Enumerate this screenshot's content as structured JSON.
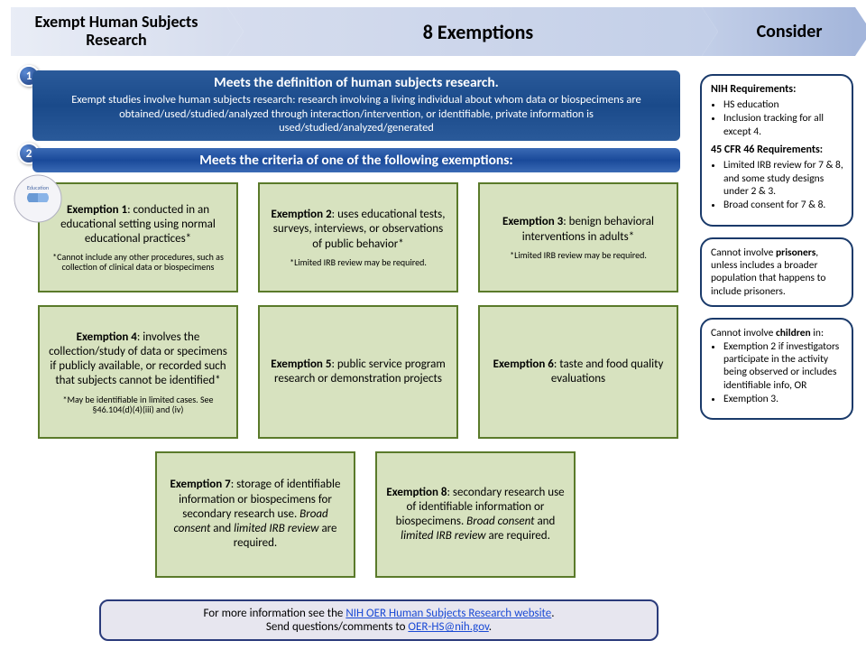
{
  "chevrons": {
    "c1": "Exempt Human Subjects Research",
    "c2": "8 Exemptions",
    "c3": "Consider"
  },
  "definition": {
    "title": "Meets the definition of human subjects research.",
    "desc": "Exempt studies involve human subjects research: research involving a living individual about whom data or biospecimens are obtained/used/studied/analyzed through interaction/intervention, or identifiable, private information is used/studied/analyzed/generated"
  },
  "criteria_title": "Meets the criteria of one of the following exemptions:",
  "exemptions": {
    "e1": {
      "title": "Exemption 1",
      "text": ": conducted in an educational setting using normal educational practices*",
      "note": "*Cannot include any other procedures, such as collection of clinical data or biospecimens"
    },
    "e2": {
      "title": "Exemption 2",
      "text": ": uses educational tests, surveys, interviews, or observations of public behavior*",
      "note": "*Limited IRB review may be required."
    },
    "e3": {
      "title": "Exemption 3",
      "text": ": benign behavioral interventions in adults*",
      "note": "*Limited IRB review may be required."
    },
    "e4": {
      "title": "Exemption 4",
      "text": ": involves the collection/study of data or specimens if publicly available, or recorded such that subjects cannot be identified*",
      "note": "*May be identifiable in limited cases. See §46.104(d)(4)(iii) and (iv)"
    },
    "e5": {
      "title": "Exemption 5",
      "text": ": public service program research or demonstration projects"
    },
    "e6": {
      "title": "Exemption 6",
      "text": ": taste and food quality evaluations"
    },
    "e7": {
      "title": "Exemption 7",
      "html": ": storage of identifiable information or biospecimens for secondary research use. <i>Broad consent</i> and <i>limited IRB review</i> are required."
    },
    "e8": {
      "title": "Exemption 8",
      "html": ": secondary research use of identifiable information or biospecimens. <i>Broad consent</i> and <i>limited IRB review</i> are required."
    }
  },
  "sidebar": {
    "nih_heading": "NIH Requirements:",
    "nih_items": [
      "HS education",
      "Inclusion tracking for all except 4."
    ],
    "cfr_heading": "45 CFR 46 Requirements:",
    "cfr_items": [
      "Limited IRB review for 7 & 8, and some study designs under 2 & 3.",
      "Broad consent for 7 & 8."
    ],
    "prisoners_html": "Cannot involve <b>prisoners</b>, unless includes a broader population that happens to include prisoners.",
    "children_heading_html": "Cannot involve <b>children</b> in:",
    "children_items": [
      "Exemption 2 if investigators participate in the activity being observed or includes identifiable info, OR",
      "Exemption 3."
    ]
  },
  "footer": {
    "line1_pre": "For more information see the ",
    "link1": "NIH OER Human Subjects Research website",
    "line1_post": ".",
    "line2_pre": "Send questions/comments to ",
    "link2": "OER-HS@nih.gov",
    "line2_post": "."
  }
}
